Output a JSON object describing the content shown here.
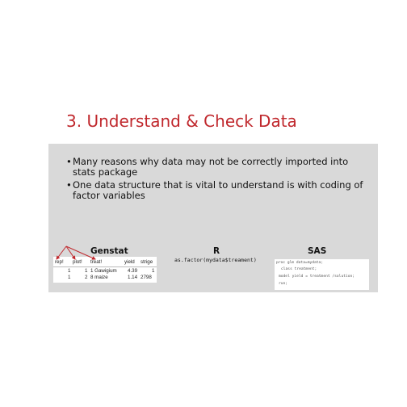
{
  "slide": {
    "title": "3. Understand & Check Data",
    "bullets": [
      "Many reasons why data may not be correctly imported into stats package",
      "One data structure that is vital to understand is with coding of factor variables"
    ]
  },
  "columns": {
    "genstat": {
      "heading": "Genstat",
      "headers": [
        "rep!",
        "plot!",
        "treat!",
        "yield",
        "strige"
      ],
      "rows": [
        [
          "1",
          "1",
          "1 Gawigium",
          "4.39",
          "1"
        ],
        [
          "1",
          "2",
          "8 maize",
          "1.14",
          "2798"
        ]
      ]
    },
    "r": {
      "heading": "R",
      "code": "as.factor(mydata$treament)"
    },
    "sas": {
      "heading": "SAS",
      "code_lines": [
        "proc glm data=mydata;",
        "class treatment;",
        "model yield = treatment /solution;",
        "run;"
      ]
    }
  },
  "colors": {
    "title": "#c0282d",
    "panel": "#d9d9d9",
    "arrow": "#c0282d"
  }
}
